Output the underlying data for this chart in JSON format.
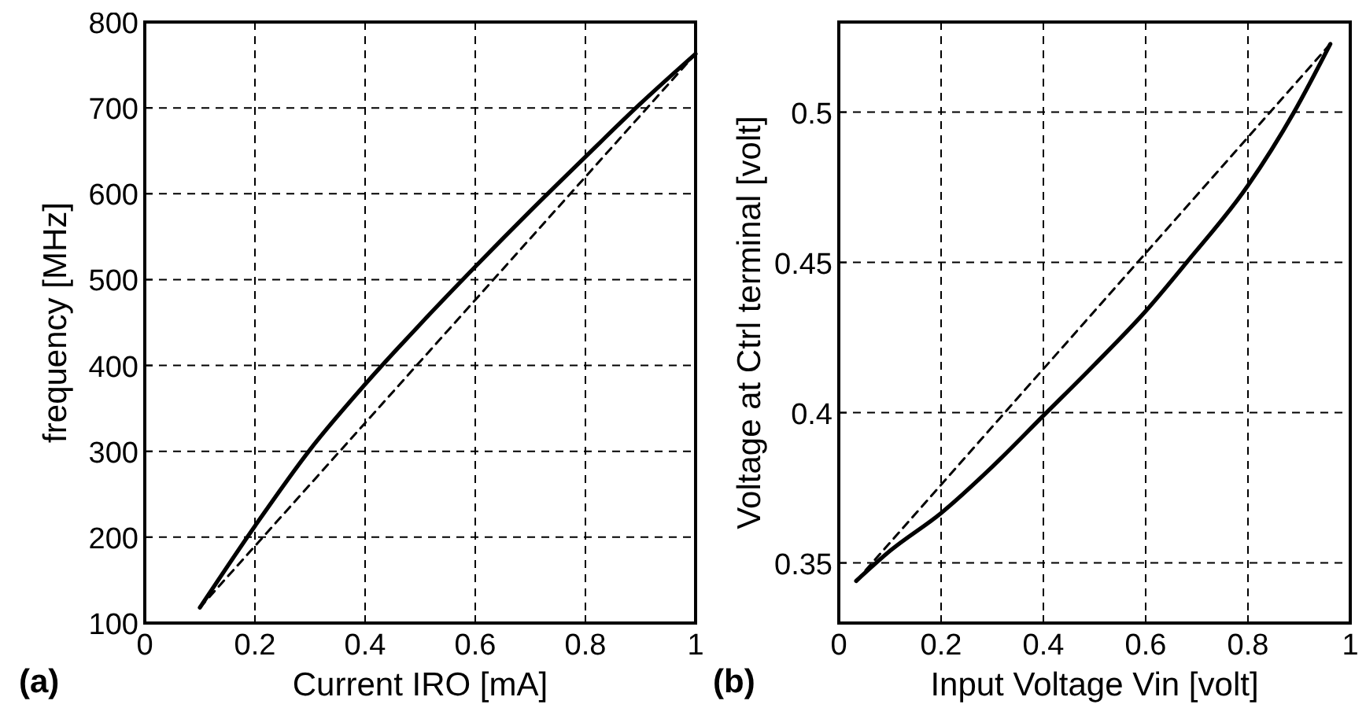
{
  "chart_data": [
    {
      "type": "line",
      "xlabel": "Current IRO [mA]",
      "ylabel": "frequency [MHz]",
      "annotations": [
        "(a)"
      ],
      "xlim": [
        0,
        1
      ],
      "ylim": [
        100,
        800
      ],
      "xticks": [
        0,
        0.2,
        0.4,
        0.6,
        0.8,
        1
      ],
      "yticks": [
        100,
        200,
        300,
        400,
        500,
        600,
        700,
        800
      ],
      "grid": true,
      "series": [
        {
          "color": "#000000",
          "line_style": "solid",
          "x": [
            0.1,
            0.2,
            0.3,
            0.4,
            0.5,
            0.6,
            0.7,
            0.8,
            0.9,
            1.0
          ],
          "values": [
            118,
            213,
            302,
            378,
            448,
            515,
            580,
            643,
            705,
            763
          ]
        },
        {
          "color": "#000000",
          "line_style": "dashed",
          "x": [
            0.1,
            1.0
          ],
          "values": [
            118,
            763
          ]
        }
      ]
    },
    {
      "type": "line",
      "xlabel": "Input Voltage Vin [volt]",
      "ylabel": "Voltage at Ctrl terminal [volt]",
      "annotations": [
        "(b)"
      ],
      "xlim": [
        0,
        1
      ],
      "ylim": [
        0.33,
        0.53
      ],
      "xticks": [
        0,
        0.2,
        0.4,
        0.6,
        0.8,
        1
      ],
      "yticks": [
        0.35,
        0.4,
        0.45,
        0.5
      ],
      "grid": true,
      "series": [
        {
          "color": "#000000",
          "line_style": "solid",
          "x": [
            0.034,
            0.1,
            0.2,
            0.3,
            0.4,
            0.5,
            0.6,
            0.68,
            0.8,
            0.89,
            0.961
          ],
          "values": [
            0.344,
            0.354,
            0.3666,
            0.382,
            0.399,
            0.416,
            0.4338,
            0.45,
            0.4756,
            0.5,
            0.5227
          ]
        },
        {
          "color": "#000000",
          "line_style": "dashed",
          "x": [
            0.034,
            0.961
          ],
          "values": [
            0.344,
            0.5227
          ]
        }
      ]
    }
  ]
}
